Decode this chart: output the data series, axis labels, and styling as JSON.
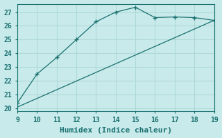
{
  "xlabel": "Humidex (Indice chaleur)",
  "background_color": "#c8eaea",
  "grid_color": "#b0d8d8",
  "line_color": "#1a7070",
  "xlim": [
    9,
    19
  ],
  "ylim": [
    19.8,
    27.6
  ],
  "yticks": [
    20,
    21,
    22,
    23,
    24,
    25,
    26,
    27
  ],
  "xticks": [
    9,
    10,
    11,
    12,
    13,
    14,
    15,
    16,
    17,
    18,
    19
  ],
  "curve1_x": [
    9,
    10,
    11,
    12,
    13,
    14,
    15,
    16,
    17,
    18,
    19
  ],
  "curve1_y": [
    20.4,
    22.5,
    23.7,
    25.0,
    26.3,
    27.0,
    27.35,
    26.6,
    26.65,
    26.6,
    26.4
  ],
  "curve2_x": [
    9,
    19
  ],
  "curve2_y": [
    20.1,
    26.4
  ],
  "font_family": "monospace",
  "xlabel_fontsize": 8,
  "tick_fontsize": 7
}
